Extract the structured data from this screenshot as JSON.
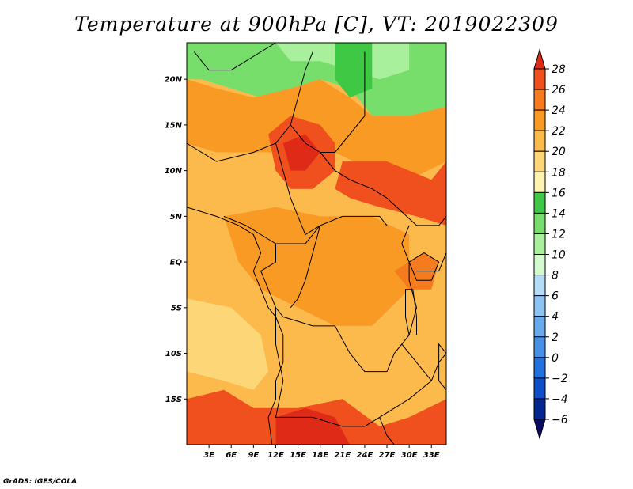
{
  "title": "Temperature at 900hPa [C], VT: 2019022309",
  "footer": "GrADS: IGES/COLA",
  "map": {
    "lon_range": [
      0,
      35
    ],
    "lat_range": [
      -20,
      24
    ],
    "lat_ticks": [
      {
        "v": 20,
        "t": "20N"
      },
      {
        "v": 15,
        "t": "15N"
      },
      {
        "v": 10,
        "t": "10N"
      },
      {
        "v": 5,
        "t": "5N"
      },
      {
        "v": 0,
        "t": "EQ"
      },
      {
        "v": -5,
        "t": "5S"
      },
      {
        "v": -10,
        "t": "10S"
      },
      {
        "v": -15,
        "t": "15S"
      }
    ],
    "lon_ticks": [
      {
        "v": 3,
        "t": "3E"
      },
      {
        "v": 6,
        "t": "6E"
      },
      {
        "v": 9,
        "t": "9E"
      },
      {
        "v": 12,
        "t": "12E"
      },
      {
        "v": 15,
        "t": "15E"
      },
      {
        "v": 18,
        "t": "18E"
      },
      {
        "v": 21,
        "t": "21E"
      },
      {
        "v": 24,
        "t": "24E"
      },
      {
        "v": 27,
        "t": "27E"
      },
      {
        "v": 30,
        "t": "30E"
      },
      {
        "v": 33,
        "t": "33E"
      }
    ]
  },
  "colorbar": {
    "levels": [
      28,
      26,
      24,
      22,
      20,
      18,
      16,
      14,
      12,
      10,
      8,
      6,
      4,
      2,
      0,
      -2,
      -4,
      -6
    ],
    "colors_top_to_bottom": [
      "#e02a18",
      "#f0501e",
      "#f67a1e",
      "#f99a25",
      "#fcb94c",
      "#fdd777",
      "#fdf4b0",
      "#3ec843",
      "#77de6c",
      "#a8f09c",
      "#d4fad0",
      "#b4dcf7",
      "#8ec4f4",
      "#68aaee",
      "#4690e6",
      "#2272dd",
      "#0c4fc6",
      "#04268f",
      "#0a0a66"
    ]
  },
  "fields": {
    "background": "#fcb94c",
    "regions": [
      {
        "name": "north-green-band",
        "color": "#77de6c",
        "shape": [
          [
            0,
            24
          ],
          [
            35,
            24
          ],
          [
            35,
            17
          ],
          [
            30,
            16
          ],
          [
            25,
            16
          ],
          [
            22,
            19
          ],
          [
            18,
            20
          ],
          [
            14,
            19
          ],
          [
            10,
            18
          ],
          [
            6,
            19
          ],
          [
            2,
            20
          ],
          [
            0,
            20
          ]
        ]
      },
      {
        "name": "north-light-green",
        "color": "#a8f09c",
        "shape": [
          [
            12,
            24
          ],
          [
            30,
            24
          ],
          [
            30,
            21
          ],
          [
            26,
            20
          ],
          [
            22,
            21
          ],
          [
            18,
            22
          ],
          [
            14,
            22
          ]
        ]
      },
      {
        "name": "northeast-dark-green",
        "color": "#3ec843",
        "shape": [
          [
            20,
            24
          ],
          [
            25,
            24
          ],
          [
            25,
            19
          ],
          [
            22,
            18
          ],
          [
            20,
            20
          ]
        ]
      },
      {
        "name": "north-warm-band",
        "color": "#f99a25",
        "shape": [
          [
            0,
            20
          ],
          [
            4,
            19
          ],
          [
            9,
            18
          ],
          [
            14,
            19
          ],
          [
            18,
            20
          ],
          [
            22,
            18
          ],
          [
            25,
            16
          ],
          [
            30,
            16
          ],
          [
            35,
            17
          ],
          [
            35,
            11
          ],
          [
            30,
            9
          ],
          [
            25,
            10
          ],
          [
            20,
            12
          ],
          [
            14,
            12
          ],
          [
            9,
            12
          ],
          [
            4,
            12
          ],
          [
            0,
            13
          ]
        ]
      },
      {
        "name": "chad-hot-core",
        "color": "#f0501e",
        "shape": [
          [
            11,
            14
          ],
          [
            14,
            16
          ],
          [
            18,
            15
          ],
          [
            20,
            13
          ],
          [
            20,
            10
          ],
          [
            17,
            8
          ],
          [
            14,
            8
          ],
          [
            12,
            10
          ]
        ]
      },
      {
        "name": "chad-red-core",
        "color": "#e02a18",
        "shape": [
          [
            13,
            13
          ],
          [
            16,
            14
          ],
          [
            18,
            12
          ],
          [
            16,
            10
          ],
          [
            14,
            10
          ]
        ]
      },
      {
        "name": "east-hot",
        "color": "#f0501e",
        "shape": [
          [
            21,
            11
          ],
          [
            27,
            11
          ],
          [
            33,
            9
          ],
          [
            35,
            11
          ],
          [
            35,
            4
          ],
          [
            31,
            5
          ],
          [
            26,
            6
          ],
          [
            22,
            7
          ],
          [
            20,
            8
          ]
        ]
      },
      {
        "name": "center-warm",
        "color": "#f99a25",
        "shape": [
          [
            5,
            5
          ],
          [
            12,
            6
          ],
          [
            18,
            5
          ],
          [
            25,
            5
          ],
          [
            30,
            3
          ],
          [
            30,
            -3
          ],
          [
            25,
            -7
          ],
          [
            20,
            -7
          ],
          [
            15,
            -5
          ],
          [
            10,
            -3
          ],
          [
            7,
            0
          ]
        ]
      },
      {
        "name": "southwest-light",
        "color": "#fdd777",
        "shape": [
          [
            0,
            -4
          ],
          [
            6,
            -5
          ],
          [
            10,
            -8
          ],
          [
            11,
            -12
          ],
          [
            9,
            -14
          ],
          [
            5,
            -13
          ],
          [
            0,
            -12
          ]
        ]
      },
      {
        "name": "south-hot",
        "color": "#f0501e",
        "shape": [
          [
            0,
            -15
          ],
          [
            5,
            -14
          ],
          [
            9,
            -16
          ],
          [
            15,
            -16
          ],
          [
            21,
            -15
          ],
          [
            26,
            -18
          ],
          [
            30,
            -17
          ],
          [
            35,
            -15
          ],
          [
            35,
            -20
          ],
          [
            0,
            -20
          ]
        ]
      },
      {
        "name": "south-red-core",
        "color": "#e02a18",
        "shape": [
          [
            12,
            -17
          ],
          [
            16,
            -16
          ],
          [
            20,
            -17
          ],
          [
            22,
            -20
          ],
          [
            12,
            -20
          ]
        ]
      },
      {
        "name": "lake-victoria-hot",
        "color": "#f67a1e",
        "shape": [
          [
            28,
            -1
          ],
          [
            32,
            1
          ],
          [
            34,
            0
          ],
          [
            33,
            -3
          ],
          [
            30,
            -3
          ]
        ]
      }
    ],
    "borders": [
      [
        [
          1,
          23
        ],
        [
          3,
          21
        ],
        [
          6,
          21
        ],
        [
          10,
          23
        ],
        [
          12,
          24
        ]
      ],
      [
        [
          0,
          13
        ],
        [
          4,
          11
        ],
        [
          9,
          12
        ],
        [
          12,
          13
        ],
        [
          14,
          15
        ],
        [
          15,
          18
        ],
        [
          16,
          21
        ],
        [
          17,
          23
        ]
      ],
      [
        [
          14,
          15
        ],
        [
          16,
          13
        ],
        [
          18,
          12
        ],
        [
          20,
          12
        ],
        [
          22,
          14
        ],
        [
          24,
          16
        ],
        [
          24,
          20
        ],
        [
          24,
          23
        ]
      ],
      [
        [
          12,
          13
        ],
        [
          13,
          10
        ],
        [
          14,
          7
        ],
        [
          15,
          5
        ],
        [
          16,
          3
        ],
        [
          18,
          4
        ],
        [
          21,
          5
        ],
        [
          24,
          5
        ],
        [
          26,
          5
        ],
        [
          27,
          4
        ]
      ],
      [
        [
          18,
          12
        ],
        [
          20,
          10
        ],
        [
          22,
          9
        ],
        [
          25,
          8
        ],
        [
          27,
          7
        ],
        [
          31,
          4
        ],
        [
          34,
          4
        ],
        [
          35,
          5
        ]
      ],
      [
        [
          5,
          5
        ],
        [
          8,
          4
        ],
        [
          10,
          3
        ],
        [
          12,
          2
        ],
        [
          12,
          0
        ],
        [
          10,
          -1
        ],
        [
          11,
          -3
        ],
        [
          12,
          -5
        ],
        [
          13,
          -6
        ]
      ],
      [
        [
          12,
          2
        ],
        [
          16,
          2
        ],
        [
          18,
          4
        ],
        [
          17,
          1
        ],
        [
          16,
          -2
        ],
        [
          15,
          -4
        ],
        [
          14,
          -5
        ]
      ],
      [
        [
          13,
          -6
        ],
        [
          17,
          -7
        ],
        [
          20,
          -7
        ],
        [
          22,
          -10
        ],
        [
          24,
          -12
        ],
        [
          25,
          -12
        ],
        [
          27,
          -12
        ],
        [
          28,
          -10
        ],
        [
          29,
          -9
        ]
      ],
      [
        [
          12,
          -5
        ],
        [
          12,
          -9
        ],
        [
          13,
          -13
        ],
        [
          12,
          -17
        ],
        [
          17,
          -17
        ],
        [
          21,
          -18
        ],
        [
          24,
          -18
        ],
        [
          26,
          -17
        ],
        [
          28,
          -16
        ]
      ],
      [
        [
          29,
          -9
        ],
        [
          30,
          -8
        ],
        [
          31,
          -5
        ],
        [
          30,
          -2
        ],
        [
          30,
          0
        ],
        [
          29,
          2
        ],
        [
          30,
          4
        ]
      ],
      [
        [
          31,
          -1
        ],
        [
          34,
          -1
        ],
        [
          35,
          1
        ]
      ],
      [
        [
          28,
          -16
        ],
        [
          30,
          -15
        ],
        [
          33,
          -13
        ],
        [
          34,
          -11
        ],
        [
          35,
          -10
        ]
      ],
      [
        [
          29,
          -9
        ],
        [
          31,
          -11
        ],
        [
          33,
          -13
        ]
      ],
      [
        [
          26,
          -17
        ],
        [
          27,
          -19
        ],
        [
          28,
          -20
        ]
      ]
    ],
    "coastline": [
      [
        0,
        6
      ],
      [
        4,
        5
      ],
      [
        7,
        4
      ],
      [
        9,
        3
      ],
      [
        10,
        1
      ],
      [
        9,
        -1
      ],
      [
        10,
        -3
      ],
      [
        11,
        -5
      ],
      [
        12,
        -6
      ],
      [
        13,
        -8
      ],
      [
        13,
        -11
      ],
      [
        12,
        -13
      ],
      [
        12,
        -15
      ],
      [
        11,
        -17
      ],
      [
        11.5,
        -20
      ]
    ],
    "lakes": [
      {
        "shape": [
          [
            30,
            0
          ],
          [
            32,
            1
          ],
          [
            34,
            0
          ],
          [
            33,
            -2
          ],
          [
            31,
            -2
          ]
        ]
      },
      {
        "shape": [
          [
            29.5,
            -3
          ],
          [
            30.5,
            -3
          ],
          [
            31,
            -6
          ],
          [
            31,
            -8
          ],
          [
            30,
            -8
          ],
          [
            29.5,
            -6
          ]
        ]
      },
      {
        "shape": [
          [
            34,
            -9
          ],
          [
            35,
            -10
          ],
          [
            35,
            -14
          ],
          [
            34,
            -13
          ]
        ]
      }
    ]
  }
}
